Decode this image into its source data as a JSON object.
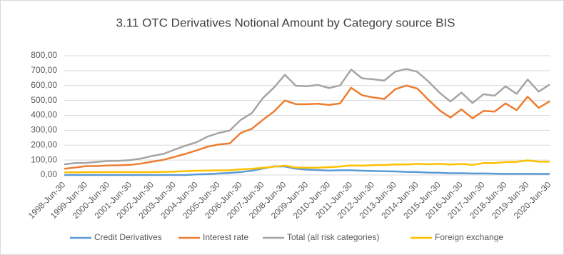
{
  "chart_data": {
    "type": "line",
    "title": "3.11 OTC Derivatives Notional Amount by Category source BIS",
    "categories": [
      "1998-Jun-30",
      null,
      "1999-Jun-30",
      null,
      "2000-Jun-30",
      null,
      "2001-Jun-30",
      null,
      "2002-Jun-30",
      null,
      "2003-Jun-30",
      null,
      "2004-Jun-30",
      null,
      "2005-Jun-30",
      null,
      "2006-Jun-30",
      null,
      "2007-Jun-30",
      null,
      "2008-Jun-30",
      null,
      "2009-Jun-30",
      null,
      "2010-Jun-30",
      null,
      "2011-Jun-30",
      null,
      "2012-Jun-30",
      null,
      "2013-Jun-30",
      null,
      "2014-Jun-30",
      null,
      "2015-Jun-30",
      null,
      "2016-Jun-30",
      null,
      "2017-Jun-30",
      null,
      "2018-Jun-30",
      null,
      "2019-Jun-30",
      null,
      "2020-Jun-30"
    ],
    "series": [
      {
        "name": "Credit Derivatives",
        "color": "#5b9bd5",
        "values": [
          0,
          0,
          0,
          0,
          0,
          0,
          0,
          0,
          0,
          0,
          0,
          0,
          4,
          6,
          10,
          14,
          20,
          29,
          43,
          58,
          57,
          42,
          36,
          33,
          30,
          32,
          32,
          29,
          27,
          25,
          24,
          21,
          20,
          16,
          15,
          12,
          12,
          10,
          10,
          9,
          8,
          8,
          8,
          7,
          8
        ]
      },
      {
        "name": "Interest rate",
        "color": "#ed7d31",
        "values": [
          42,
          50,
          60,
          60,
          64,
          65,
          68,
          77,
          90,
          102,
          122,
          142,
          165,
          190,
          205,
          212,
          282,
          310,
          370,
          425,
          500,
          475,
          475,
          478,
          470,
          480,
          585,
          535,
          520,
          510,
          575,
          600,
          580,
          505,
          435,
          385,
          440,
          380,
          430,
          425,
          480,
          435,
          525,
          450,
          495
        ]
      },
      {
        "name": "Total (all risk categories)",
        "color": "#a5a5a5",
        "values": [
          72,
          80,
          81,
          88,
          94,
          95,
          100,
          111,
          128,
          142,
          170,
          197,
          220,
          258,
          282,
          298,
          370,
          415,
          516,
          586,
          672,
          598,
          595,
          604,
          583,
          601,
          707,
          648,
          642,
          633,
          693,
          711,
          692,
          628,
          553,
          493,
          553,
          483,
          542,
          532,
          595,
          544,
          640,
          559,
          607
        ]
      },
      {
        "name": "Foreign exchange",
        "color": "#ffc000",
        "values": [
          18,
          18,
          19,
          19,
          20,
          20,
          20,
          19,
          20,
          21,
          23,
          26,
          29,
          30,
          31,
          32,
          38,
          42,
          48,
          56,
          63,
          50,
          49,
          49,
          53,
          57,
          64,
          63,
          66,
          67,
          71,
          70,
          75,
          72,
          75,
          70,
          74,
          68,
          80,
          80,
          87,
          88,
          98,
          89,
          90
        ]
      }
    ],
    "ylim": [
      0,
      800
    ],
    "yticks": [
      {
        "value": 0,
        "label": "0,00"
      },
      {
        "value": 100,
        "label": "100,00"
      },
      {
        "value": 200,
        "label": "200,00"
      },
      {
        "value": 300,
        "label": "300,00"
      },
      {
        "value": 400,
        "label": "400,00"
      },
      {
        "value": 500,
        "label": "500,00"
      },
      {
        "value": 600,
        "label": "600,00"
      },
      {
        "value": 700,
        "label": "700,00"
      },
      {
        "value": 800,
        "label": "800,00"
      }
    ],
    "grid": true
  }
}
